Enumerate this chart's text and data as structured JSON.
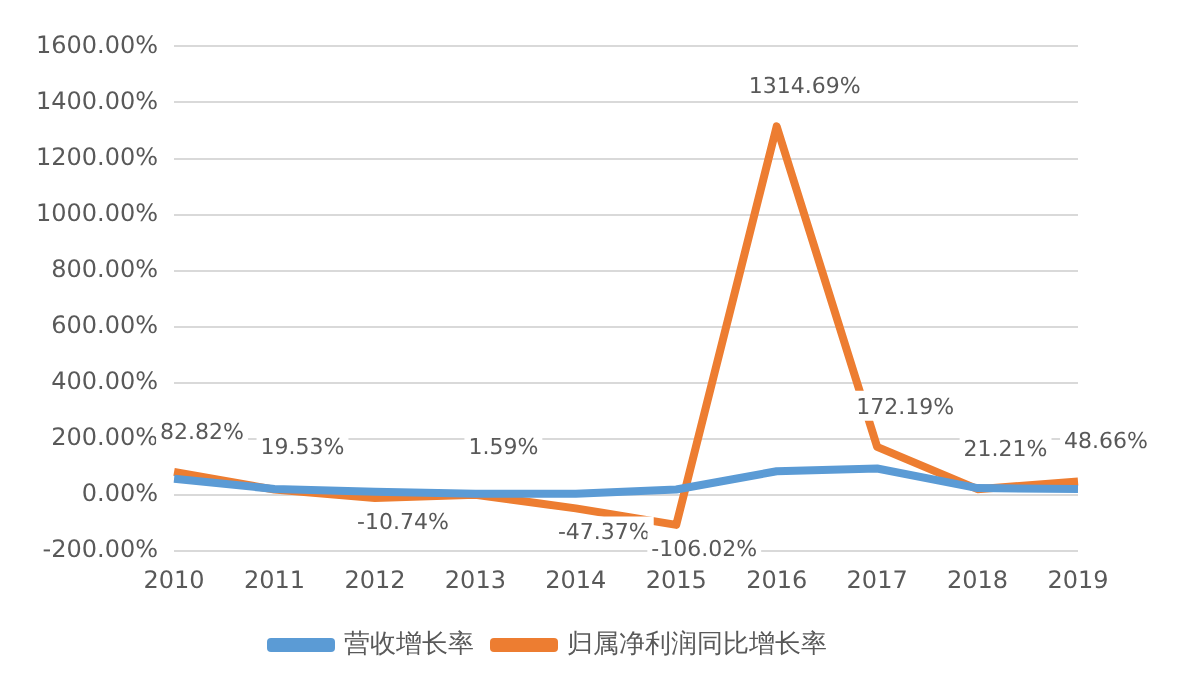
{
  "chart_data": {
    "type": "line",
    "categories": [
      "2010",
      "2011",
      "2012",
      "2013",
      "2014",
      "2015",
      "2016",
      "2017",
      "2018",
      "2019"
    ],
    "series": [
      {
        "name": "营收增长率",
        "color": "#5b9bd5",
        "values": [
          58,
          22,
          12,
          5,
          5,
          20,
          85,
          95,
          25,
          22
        ]
      },
      {
        "name": "归属净利润同比增长率",
        "color": "#ed7d31",
        "values": [
          82.82,
          19.53,
          -10.74,
          1.59,
          -47.37,
          -106.02,
          1314.69,
          172.19,
          21.21,
          48.66
        ],
        "value_labels": [
          "82.82%",
          "19.53%",
          "-10.74%",
          "1.59%",
          "-47.37%",
          "-106.02%",
          "1314.69%",
          "172.19%",
          "21.21%",
          "48.66%"
        ]
      }
    ],
    "ylim": [
      -200,
      1600
    ],
    "yticks": [
      {
        "value": -200,
        "label": "-200.00%"
      },
      {
        "value": 0,
        "label": "0.00%"
      },
      {
        "value": 200,
        "label": "200.00%"
      },
      {
        "value": 400,
        "label": "400.00%"
      },
      {
        "value": 600,
        "label": "600.00%"
      },
      {
        "value": 800,
        "label": "800.00%"
      },
      {
        "value": 1000,
        "label": "1000.00%"
      },
      {
        "value": 1200,
        "label": "1200.00%"
      },
      {
        "value": 1400,
        "label": "1400.00%"
      },
      {
        "value": 1600,
        "label": "1600.00%"
      }
    ],
    "grid": "y",
    "legend": "bottom",
    "marker": "none",
    "line_style": "solid"
  }
}
